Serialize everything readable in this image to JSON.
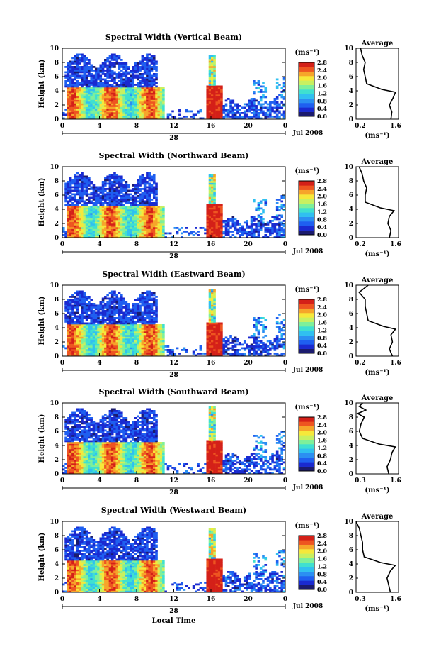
{
  "colormap": [
    "#1b1b6e",
    "#1a2ad0",
    "#1f5ff0",
    "#2b8ff2",
    "#30c0f0",
    "#3fe0d0",
    "#7ef09a",
    "#c8f060",
    "#f6e83a",
    "#f6a52a",
    "#ee5520",
    "#d42018"
  ],
  "common": {
    "y_label": "Height (km)",
    "y_ticks": [
      "0",
      "2",
      "4",
      "6",
      "8",
      "10"
    ],
    "x_ticks": [
      "0",
      "4",
      "8",
      "12",
      "16",
      "20",
      "0"
    ],
    "date_day": "28",
    "date_month_year": "Jul 2008",
    "x_label": "Local Time",
    "cb_unit": "(ms⁻¹)",
    "cb_ticks": [
      "0.0",
      "0.4",
      "0.8",
      "1.2",
      "1.6",
      "2.0",
      "2.4",
      "2.8"
    ],
    "avg_title": "Average",
    "avg_xlabel": "(ms⁻¹)"
  },
  "chart_data": [
    {
      "type": "heatmap",
      "title": "Spectral Width (Vertical Beam)",
      "xlabel": "",
      "ylabel": "Height (km)",
      "xlim": [
        0,
        24
      ],
      "ylim": [
        0,
        10
      ],
      "clim": [
        0.0,
        2.8
      ],
      "average_profile": {
        "x_ticks": [
          "0.2",
          "1.6"
        ],
        "xlim": [
          0.2,
          1.6
        ],
        "height_km": [
          0,
          1,
          2,
          3,
          3.8,
          4.2,
          5,
          6,
          7,
          8,
          9,
          10
        ],
        "width_ms": [
          1.35,
          1.38,
          1.3,
          1.42,
          1.5,
          1.05,
          0.55,
          0.5,
          0.45,
          0.5,
          0.4,
          0.35
        ]
      }
    },
    {
      "type": "heatmap",
      "title": "Spectral Width (Northward Beam)",
      "xlabel": "",
      "ylabel": "Height (km)",
      "xlim": [
        0,
        24
      ],
      "ylim": [
        0,
        10
      ],
      "clim": [
        0.0,
        2.8
      ],
      "average_profile": {
        "x_ticks": [
          "0.2",
          "1.6"
        ],
        "xlim": [
          0.2,
          1.6
        ],
        "height_km": [
          0,
          1,
          2,
          3,
          3.8,
          4.2,
          5,
          6,
          7,
          8,
          9,
          10
        ],
        "width_ms": [
          1.3,
          1.35,
          1.25,
          1.3,
          1.45,
          1.0,
          0.5,
          0.5,
          0.55,
          0.45,
          0.4,
          0.3
        ]
      }
    },
    {
      "type": "heatmap",
      "title": "Spectral Width (Eastward Beam)",
      "xlabel": "",
      "ylabel": "Height (km)",
      "xlim": [
        0,
        24
      ],
      "ylim": [
        0,
        10
      ],
      "clim": [
        0.0,
        2.8
      ],
      "average_profile": {
        "x_ticks": [
          "0.2",
          "1.6"
        ],
        "xlim": [
          0.2,
          1.6
        ],
        "height_km": [
          0,
          1,
          2,
          3,
          3.8,
          4.2,
          5,
          6,
          7,
          8,
          9,
          10
        ],
        "width_ms": [
          1.4,
          1.3,
          1.4,
          1.35,
          1.5,
          1.1,
          0.6,
          0.55,
          0.5,
          0.5,
          0.3,
          0.6
        ]
      }
    },
    {
      "type": "heatmap",
      "title": "Spectral Width (Southward Beam)",
      "xlabel": "",
      "ylabel": "Height (km)",
      "xlim": [
        0,
        24
      ],
      "ylim": [
        0,
        10
      ],
      "clim": [
        0.0,
        2.8
      ],
      "average_profile": {
        "x_ticks": [
          "0.3",
          "1.6"
        ],
        "xlim": [
          0.3,
          1.6
        ],
        "height_km": [
          0,
          1,
          2,
          3,
          3.8,
          4.2,
          5,
          6,
          7,
          8,
          8.5,
          9,
          9.5,
          10
        ],
        "width_ms": [
          1.3,
          1.25,
          1.35,
          1.4,
          1.5,
          1.0,
          0.5,
          0.4,
          0.45,
          0.55,
          0.35,
          0.6,
          0.4,
          0.5
        ]
      }
    },
    {
      "type": "heatmap",
      "title": "Spectral Width (Westward Beam)",
      "xlabel": "Local Time",
      "ylabel": "Height (km)",
      "xlim": [
        0,
        24
      ],
      "ylim": [
        0,
        10
      ],
      "clim": [
        0.0,
        2.8
      ],
      "average_profile": {
        "x_ticks": [
          "0.3",
          "1.6"
        ],
        "xlim": [
          0.3,
          1.6
        ],
        "height_km": [
          0,
          1,
          2,
          3,
          3.8,
          4.2,
          5,
          6,
          7,
          8,
          9,
          10
        ],
        "width_ms": [
          1.35,
          1.3,
          1.25,
          1.35,
          1.5,
          1.05,
          0.55,
          0.5,
          0.5,
          0.45,
          0.4,
          0.3
        ]
      }
    }
  ]
}
